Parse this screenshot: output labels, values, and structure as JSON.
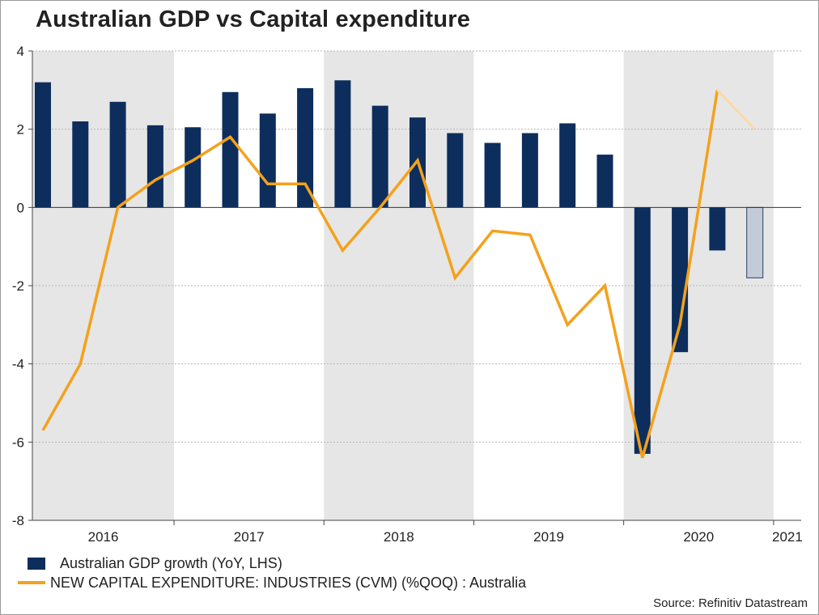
{
  "chart_data": {
    "type": "bar+line",
    "title": "Australian GDP vs Capital expenditure",
    "ylim": [
      -8,
      4
    ],
    "yticks": [
      4,
      2,
      0,
      -2,
      -4,
      -6,
      -8
    ],
    "year_labels": [
      "2016",
      "2017",
      "2018",
      "2019",
      "2020",
      "2021"
    ],
    "shaded_years": [
      "2016",
      "2018",
      "2020"
    ],
    "quarters": [
      "2016Q1",
      "2016Q2",
      "2016Q3",
      "2016Q4",
      "2017Q1",
      "2017Q2",
      "2017Q3",
      "2017Q4",
      "2018Q1",
      "2018Q2",
      "2018Q3",
      "2018Q4",
      "2019Q1",
      "2019Q2",
      "2019Q3",
      "2019Q4",
      "2020Q1",
      "2020Q2",
      "2020Q3",
      "2020Q4"
    ],
    "series": [
      {
        "name": "Australian GDP growth (YoY, LHS)",
        "kind": "bar",
        "color": "#0d2e5c",
        "values": [
          3.2,
          2.2,
          2.7,
          2.1,
          2.05,
          2.95,
          2.4,
          3.05,
          3.25,
          2.6,
          2.3,
          1.9,
          1.65,
          1.9,
          2.15,
          1.35,
          -6.3,
          -3.7,
          -1.1,
          -1.8
        ],
        "forecast_from_index": 19,
        "forecast_color": "#c3cad8"
      },
      {
        "name": "NEW CAPITAL EXPENDITURE: INDUSTRIES (CVM) (%QOQ) : Australia",
        "kind": "line",
        "color": "#f4a11c",
        "values": [
          -5.7,
          -4.0,
          0.0,
          0.7,
          1.2,
          1.8,
          0.6,
          0.6,
          -1.1,
          0.0,
          1.2,
          -1.8,
          -0.6,
          -0.7,
          -3.0,
          -2.0,
          -6.4,
          -3.0,
          3.0,
          2.0
        ],
        "forecast_from_index": 18,
        "forecast_color": "#fbd9a6"
      }
    ],
    "source": "Source: Refinitiv Datastream"
  },
  "legend": {
    "gdp_label": "Australian GDP growth (YoY, LHS)",
    "capex_label": "NEW CAPITAL EXPENDITURE: INDUSTRIES (CVM) (%QOQ) : Australia"
  }
}
